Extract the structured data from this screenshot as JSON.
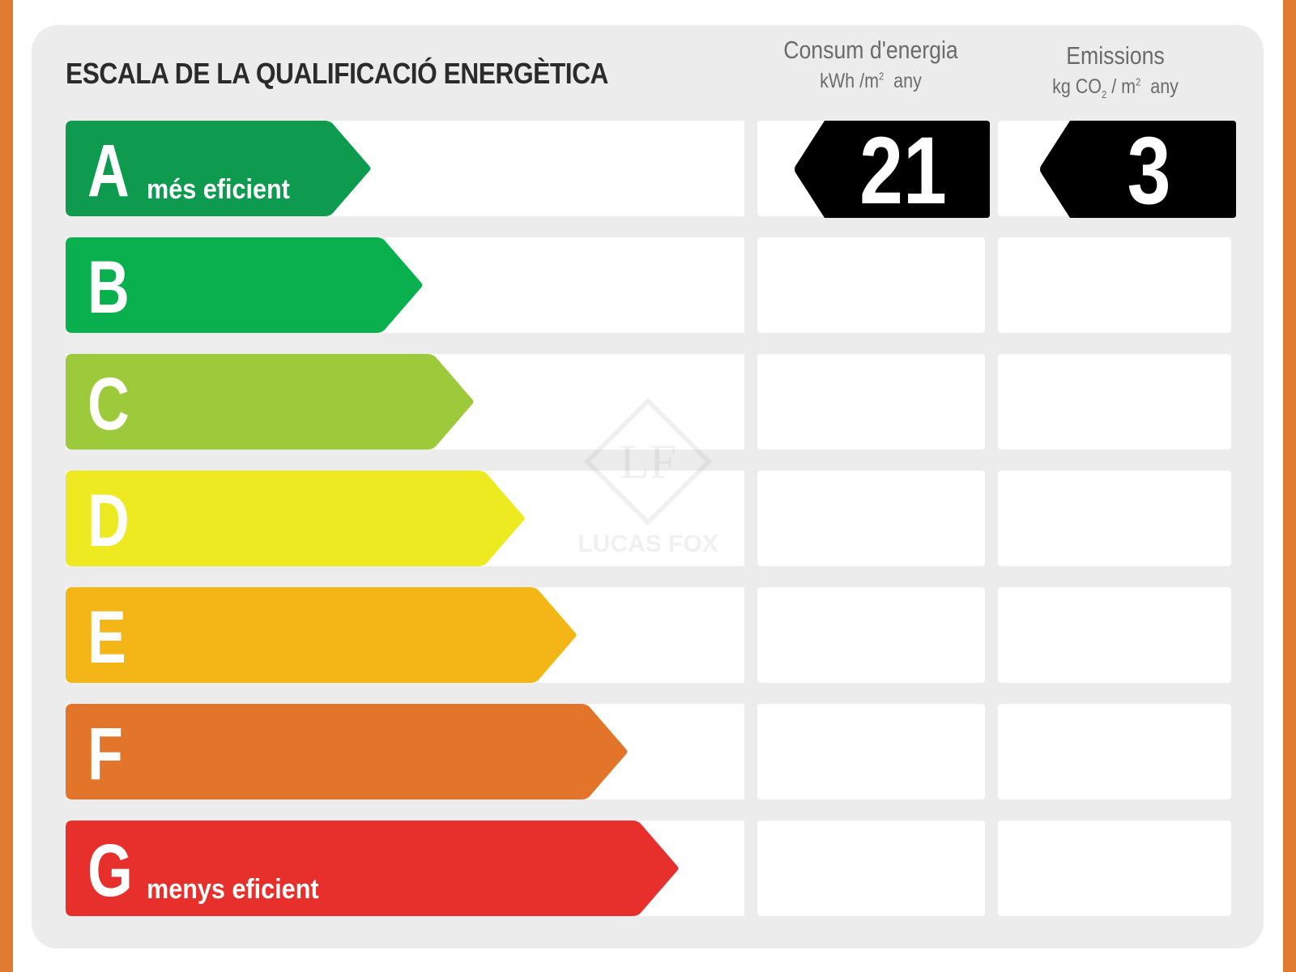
{
  "title": "ESCALA DE LA QUALIFICACIÓ ENERGÈTICA",
  "columns": {
    "energy": {
      "label": "Consum d'energia",
      "unit_prefix": "kWh /m",
      "unit_sup": "2",
      "unit_suffix": "any"
    },
    "emissions": {
      "label": "Emissions",
      "unit_prefix": "kg CO",
      "unit_sub": "2",
      "unit_mid": " / m",
      "unit_sup": "2",
      "unit_suffix": "any"
    }
  },
  "classes": [
    {
      "letter": "A",
      "sublabel": "més eficient",
      "color": "#0e9a4f"
    },
    {
      "letter": "B",
      "sublabel": "",
      "color": "#0bb04e"
    },
    {
      "letter": "C",
      "sublabel": "",
      "color": "#9cca3b"
    },
    {
      "letter": "D",
      "sublabel": "",
      "color": "#eeea22"
    },
    {
      "letter": "E",
      "sublabel": "",
      "color": "#f3b616"
    },
    {
      "letter": "F",
      "sublabel": "",
      "color": "#e27529"
    },
    {
      "letter": "G",
      "sublabel": "menys eficient",
      "color": "#e7302b"
    }
  ],
  "rating": {
    "energy": {
      "class": "A",
      "value": "21"
    },
    "emissions": {
      "class": "A",
      "value": "3"
    }
  },
  "watermark": {
    "text": "LUCAS FOX",
    "logo_letters": "LF"
  },
  "colors": {
    "frame": "#e07a2e",
    "card": "#ececec",
    "marker": "#000000"
  }
}
